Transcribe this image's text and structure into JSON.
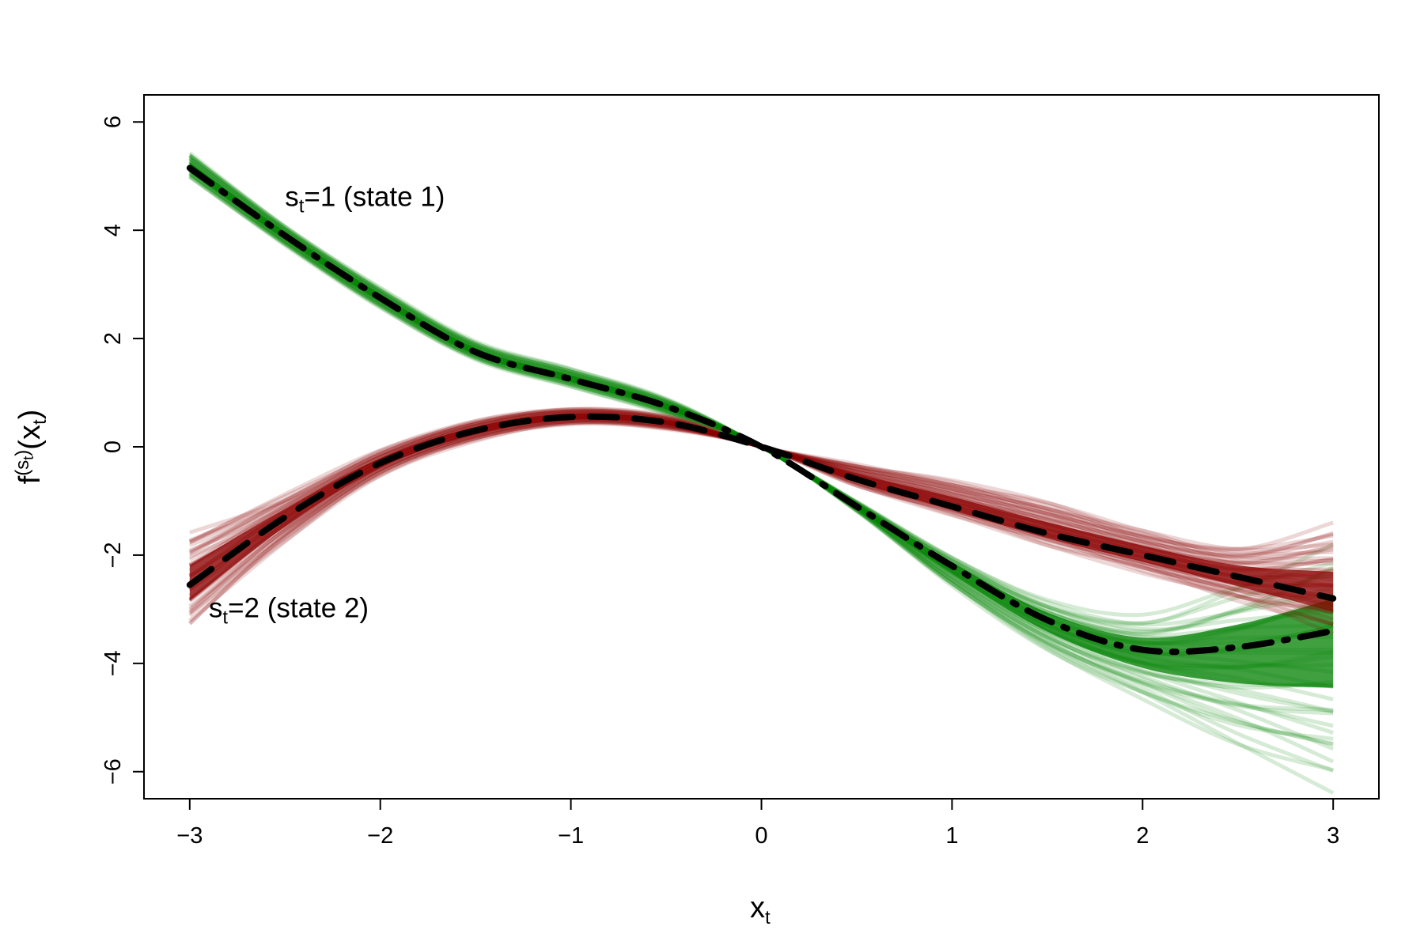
{
  "chart_data": {
    "type": "line",
    "title": "",
    "xlabel": {
      "main": "x",
      "sub": "t"
    },
    "ylabel": {
      "prefix": "f",
      "sup_base": "(s",
      "sup_sub": "t",
      "sup_close": ")",
      "arg_open": "(x",
      "arg_sub": "t",
      "arg_close": ")"
    },
    "xlim": [
      -3.24,
      3.24
    ],
    "ylim": [
      -6.5,
      6.5
    ],
    "x_ticks": [
      -3,
      -2,
      -1,
      0,
      1,
      2,
      3
    ],
    "x_tick_labels": [
      "−3",
      "−2",
      "−1",
      "0",
      "1",
      "2",
      "3"
    ],
    "y_ticks": [
      -6,
      -4,
      -2,
      0,
      2,
      4,
      6
    ],
    "y_tick_labels": [
      "−6",
      "−4",
      "−2",
      "0",
      "2",
      "4",
      "6"
    ],
    "grid": false,
    "x": [
      -3,
      -2.5,
      -2,
      -1.5,
      -1,
      -0.5,
      0,
      0.5,
      1,
      1.5,
      2,
      2.5,
      3
    ],
    "series": [
      {
        "name": "state 1",
        "color": "#008000",
        "mean_line_style": "dashdot",
        "values": [
          5.15,
          3.9,
          2.75,
          1.75,
          1.25,
          0.75,
          0.0,
          -1.1,
          -2.2,
          -3.2,
          -3.75,
          -3.7,
          -3.4
        ],
        "band_lower": [
          4.95,
          3.7,
          2.55,
          1.6,
          1.1,
          0.6,
          0.0,
          -1.2,
          -2.6,
          -3.8,
          -4.7,
          -5.6,
          -6.4
        ],
        "band_upper": [
          5.45,
          4.1,
          2.95,
          1.95,
          1.45,
          0.9,
          0.0,
          -1.0,
          -2.0,
          -2.8,
          -3.1,
          -2.5,
          -1.7
        ]
      },
      {
        "name": "state 2",
        "color": "#8B0000",
        "mean_line_style": "dashed",
        "values": [
          -2.55,
          -1.3,
          -0.3,
          0.3,
          0.55,
          0.45,
          0.0,
          -0.6,
          -1.1,
          -1.6,
          -2.0,
          -2.4,
          -2.8
        ],
        "band_lower": [
          -3.4,
          -1.8,
          -0.55,
          0.1,
          0.4,
          0.32,
          0.0,
          -0.75,
          -1.3,
          -1.85,
          -2.35,
          -2.9,
          -3.5
        ],
        "band_upper": [
          -1.5,
          -0.85,
          -0.05,
          0.5,
          0.72,
          0.58,
          0.0,
          -0.3,
          -0.6,
          -1.0,
          -1.5,
          -1.8,
          -1.4
        ]
      }
    ],
    "annotations": [
      {
        "main": "s",
        "sub": "t",
        "rest": "=1 (state 1)",
        "x": -2.5,
        "y": 4.45
      },
      {
        "main": "s",
        "sub": "t",
        "rest": "=2 (state 2)",
        "x": -2.9,
        "y": -3.15
      }
    ]
  }
}
